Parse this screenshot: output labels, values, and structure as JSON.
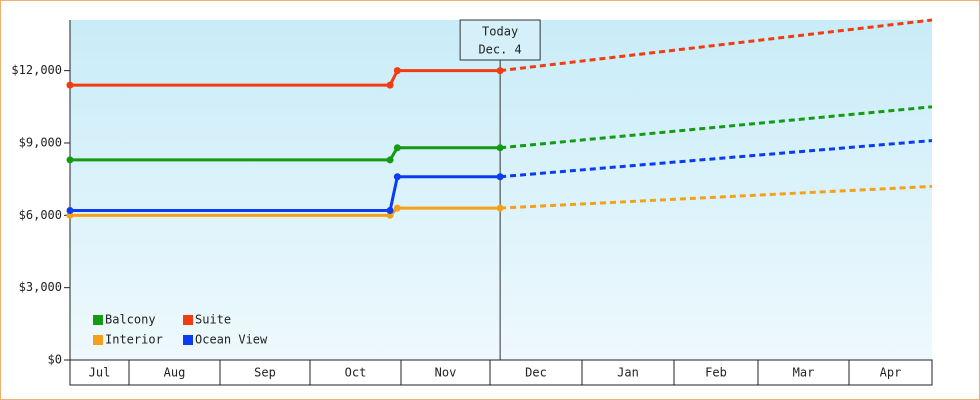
{
  "chart_data": {
    "type": "line",
    "categories": [
      "Jul",
      "Aug",
      "Sep",
      "Oct",
      "Nov",
      "Dec",
      "Jan",
      "Feb",
      "Mar",
      "Apr"
    ],
    "xlim": [
      0,
      10
    ],
    "x": [
      0,
      3.88,
      3.96,
      5.11,
      10
    ],
    "ylim": [
      0,
      14100
    ],
    "yticks": [
      {
        "value": 0,
        "label": "$0"
      },
      {
        "value": 3000,
        "label": "$3,000"
      },
      {
        "value": 6000,
        "label": "$6,000"
      },
      {
        "value": 9000,
        "label": "$9,000"
      },
      {
        "value": 12000,
        "label": "$12,000"
      }
    ],
    "annotation": {
      "x": 5.11,
      "lines": [
        "Today",
        "Dec. 4"
      ]
    },
    "series": [
      {
        "name": "Balcony",
        "color": "#149a14",
        "values": [
          8300,
          8300,
          8800,
          8800,
          10500
        ]
      },
      {
        "name": "Suite",
        "color": "#f03c10",
        "values": [
          11400,
          11400,
          12000,
          12000,
          14100
        ]
      },
      {
        "name": "Interior",
        "color": "#f5a01a",
        "values": [
          6000,
          6000,
          6300,
          6300,
          7200
        ]
      },
      {
        "name": "Ocean View",
        "color": "#0a3cf0",
        "values": [
          6200,
          6200,
          7600,
          7600,
          9100
        ]
      }
    ]
  }
}
